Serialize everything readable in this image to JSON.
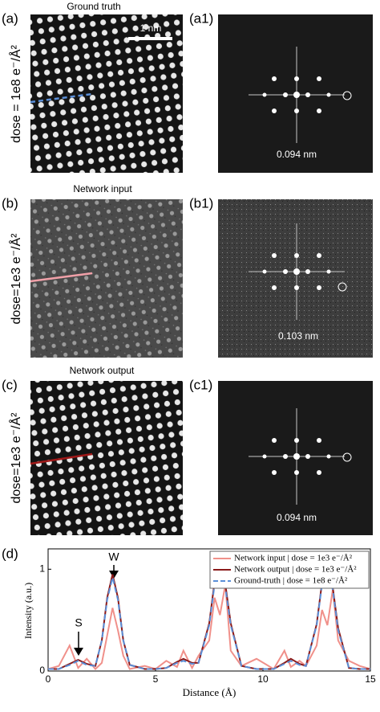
{
  "panels": [
    {
      "title": "Ground truth",
      "label": "(a)",
      "fft_label": "(a1)",
      "dose": "dose = 1e8 e⁻/Å²",
      "scale_bar": "1 nm",
      "fft_note": "0.094 nm"
    },
    {
      "title": "Network input",
      "label": "(b)",
      "fft_label": "(b1)",
      "dose": "dose=1e3 e⁻/Å²",
      "fft_note": "0.103 nm"
    },
    {
      "title": "Network output",
      "label": "(c)",
      "fft_label": "(c1)",
      "dose": "dose=1e3 e⁻/Å²",
      "fft_note": "0.094 nm"
    }
  ],
  "chart_data": {
    "type": "line",
    "label": "(d)",
    "x_label": "Distance (Å)",
    "y_label": "Intensity (a.u.)",
    "annotations": [
      "S",
      "W"
    ],
    "x": [
      0,
      0.5,
      1,
      1.4,
      1.8,
      2.2,
      2.5,
      2.75,
      3,
      3.25,
      3.5,
      3.8,
      4.5,
      5,
      5.5,
      6,
      6.3,
      6.7,
      7,
      7.5,
      7.75,
      8,
      8.25,
      8.5,
      9,
      9.7,
      10.5,
      11,
      11.3,
      11.7,
      12,
      12.5,
      12.75,
      13,
      13.25,
      13.5,
      14,
      14.5,
      15
    ],
    "series": [
      {
        "name": "Network input | dose = 1e3 e⁻/Å²",
        "color": "#f0908a",
        "dash": false,
        "values": [
          0.02,
          0.05,
          0.25,
          0.03,
          0.12,
          0.02,
          0.08,
          0.35,
          0.62,
          0.4,
          0.15,
          0.02,
          0.05,
          0.02,
          0.1,
          0.04,
          0.2,
          0.03,
          0.15,
          0.3,
          0.72,
          0.55,
          0.85,
          0.2,
          0.05,
          0.12,
          0.02,
          0.2,
          0.04,
          0.1,
          0.05,
          0.25,
          0.6,
          0.45,
          0.8,
          0.3,
          0.1,
          0.05,
          0.02
        ]
      },
      {
        "name": "Network output | dose = 1e3 e⁻/Å²",
        "color": "#8b1a1a",
        "dash": false,
        "values": [
          0.02,
          0.02,
          0.07,
          0.11,
          0.07,
          0.05,
          0.3,
          0.72,
          0.95,
          0.72,
          0.3,
          0.06,
          0.02,
          0.02,
          0.03,
          0.09,
          0.12,
          0.08,
          0.08,
          0.47,
          0.88,
          1.0,
          0.85,
          0.47,
          0.05,
          0.02,
          0.02,
          0.08,
          0.12,
          0.07,
          0.05,
          0.46,
          0.87,
          0.96,
          0.82,
          0.42,
          0.03,
          0.02,
          0.02
        ]
      },
      {
        "name": "Ground-truth | dose = 1e8 e⁻/Å²",
        "color": "#5b8fd8",
        "dash": true,
        "values": [
          0.02,
          0.02,
          0.06,
          0.1,
          0.06,
          0.05,
          0.3,
          0.7,
          0.92,
          0.7,
          0.3,
          0.06,
          0.02,
          0.02,
          0.03,
          0.08,
          0.1,
          0.07,
          0.08,
          0.45,
          0.85,
          0.97,
          0.82,
          0.45,
          0.05,
          0.02,
          0.02,
          0.07,
          0.1,
          0.06,
          0.05,
          0.45,
          0.85,
          0.94,
          0.8,
          0.4,
          0.03,
          0.02,
          0.02
        ]
      }
    ],
    "xlim": [
      0,
      15
    ],
    "ylim": [
      0,
      1.2
    ],
    "xticks": [
      0,
      5,
      10,
      15
    ],
    "yticks": [
      0,
      1
    ]
  }
}
